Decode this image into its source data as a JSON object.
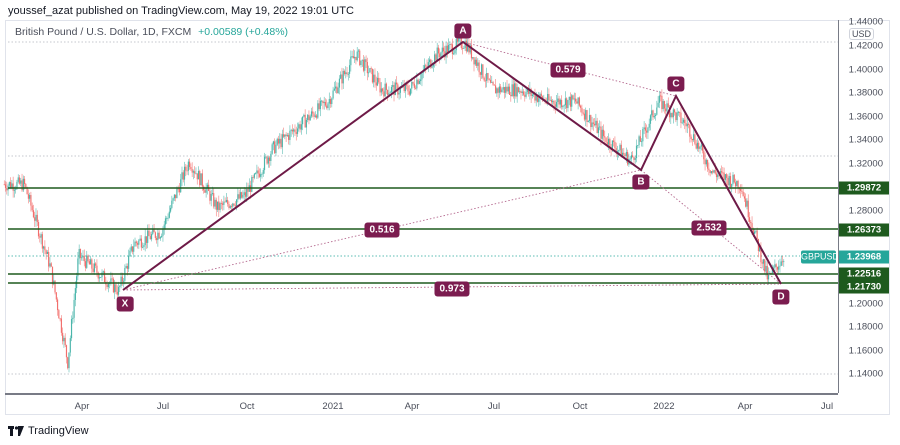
{
  "header": {
    "published": "youssef_azat published on TradingView.com, May 19, 2022 19:01 UTC"
  },
  "legend": {
    "symbol": "British Pound / U.S. Dollar, 1D, FXCM",
    "change": "+0.00589 (+0.48%)"
  },
  "price_axis": {
    "currency": "USD",
    "ticks": [
      "1.44000",
      "1.42000",
      "1.40000",
      "1.38000",
      "1.36000",
      "1.34000",
      "1.32000",
      "1.28000",
      "1.20000",
      "1.18000",
      "1.16000",
      "1.14000"
    ],
    "level_labels": [
      "1.29872",
      "1.26373",
      "1.22516",
      "1.21730"
    ],
    "current": {
      "symbol": "GBPUSD",
      "price": "1.23968"
    }
  },
  "time_axis": {
    "ticks": [
      "Apr",
      "Jul",
      "Oct",
      "2021",
      "Apr",
      "Jul",
      "Oct",
      "2022",
      "Apr",
      "Jul"
    ]
  },
  "pattern": {
    "points": [
      "X",
      "A",
      "B",
      "C",
      "D"
    ],
    "ratios": {
      "XB": "0.516",
      "AC": "0.579",
      "BD": "2.532",
      "XD": "0.973"
    }
  },
  "footer": {
    "brand": "TradingView"
  },
  "colors": {
    "up": "#26a69a",
    "down": "#ef5350",
    "pattern": "#7b1c4f",
    "level": "#1e5a1e"
  },
  "chart_data": {
    "type": "candlestick",
    "title": "British Pound / U.S. Dollar, 1D, FXCM",
    "change": "+0.00589 (+0.48%)",
    "xlabel": "",
    "ylabel": "USD",
    "x_ticks": [
      "Apr",
      "Jul",
      "Oct",
      "2021",
      "Apr",
      "Jul",
      "Oct",
      "2022",
      "Apr",
      "Jul"
    ],
    "y_ticks": [
      1.14,
      1.16,
      1.18,
      1.2,
      1.22,
      1.24,
      1.26,
      1.28,
      1.3,
      1.32,
      1.34,
      1.36,
      1.38,
      1.4,
      1.42,
      1.44
    ],
    "ylim": [
      1.13,
      1.445
    ],
    "current_price": 1.23968,
    "horizontal_levels": [
      1.29872,
      1.26373,
      1.22516,
      1.2173
    ],
    "harmonic_pattern": {
      "X": {
        "date": "2020-05",
        "price": 1.206
      },
      "A": {
        "date": "2021-06",
        "price": 1.42
      },
      "B": {
        "date": "2021-12",
        "price": 1.315
      },
      "C": {
        "date": "2022-01",
        "price": 1.375
      },
      "D": {
        "date": "2022-05",
        "price": 1.217
      },
      "ratios": {
        "XB": 0.516,
        "AC": 0.579,
        "BD": 2.532,
        "XD": 0.973
      }
    },
    "approx_path": [
      [
        "2020-01",
        1.3
      ],
      [
        "2020-02",
        1.3
      ],
      [
        "2020-03",
        1.23
      ],
      [
        "2020-03-20",
        1.15
      ],
      [
        "2020-04",
        1.24
      ],
      [
        "2020-05",
        1.22
      ],
      [
        "2020-05-15",
        1.21
      ],
      [
        "2020-06",
        1.25
      ],
      [
        "2020-07",
        1.26
      ],
      [
        "2020-08",
        1.32
      ],
      [
        "2020-09",
        1.28
      ],
      [
        "2020-10",
        1.29
      ],
      [
        "2020-11",
        1.33
      ],
      [
        "2020-12",
        1.35
      ],
      [
        "2021-01",
        1.37
      ],
      [
        "2021-02",
        1.41
      ],
      [
        "2021-03",
        1.38
      ],
      [
        "2021-04",
        1.38
      ],
      [
        "2021-05",
        1.41
      ],
      [
        "2021-06",
        1.42
      ],
      [
        "2021-07",
        1.38
      ],
      [
        "2021-08",
        1.38
      ],
      [
        "2021-09",
        1.37
      ],
      [
        "2021-10",
        1.37
      ],
      [
        "2021-11",
        1.34
      ],
      [
        "2021-12",
        1.32
      ],
      [
        "2022-01",
        1.37
      ],
      [
        "2022-02",
        1.35
      ],
      [
        "2022-03",
        1.31
      ],
      [
        "2022-04",
        1.3
      ],
      [
        "2022-05",
        1.22
      ],
      [
        "2022-05-19",
        1.24
      ]
    ]
  }
}
